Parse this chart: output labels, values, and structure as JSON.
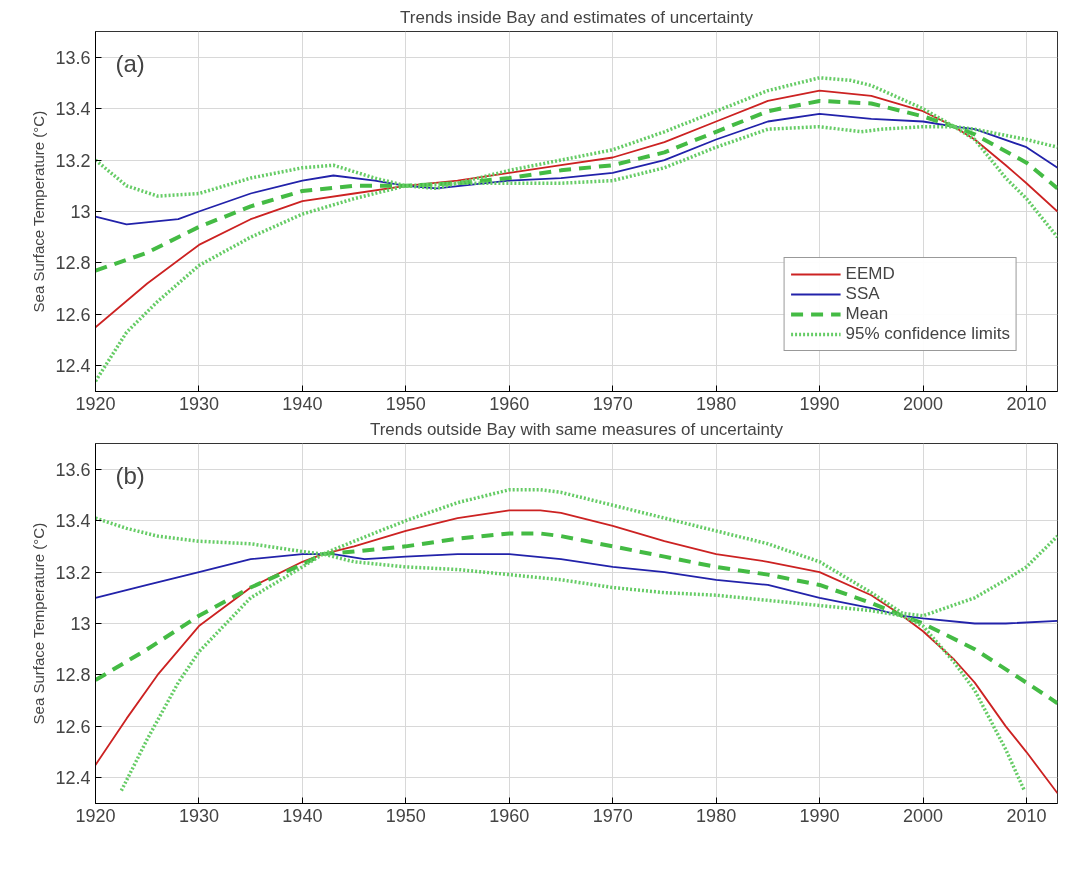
{
  "chart_data": [
    {
      "type": "line",
      "title": "Trends inside Bay and estimates of uncertainty",
      "ylabel": "Sea Surface Temperature (°C)",
      "annotations": [
        "(a)"
      ],
      "xlim": [
        1920,
        2013
      ],
      "ylim": [
        12.3,
        13.7
      ],
      "xticks": [
        1920,
        1930,
        1940,
        1950,
        1960,
        1970,
        1980,
        1990,
        2000,
        2010
      ],
      "yticks": [
        12.4,
        12.6,
        12.8,
        13,
        13.2,
        13.4,
        13.6
      ],
      "grid": true,
      "legend": "bottom right",
      "series": [
        {
          "name": "EEMD",
          "color": "#cc2222",
          "line_style": "solid",
          "x": [
            1920,
            1925,
            1930,
            1935,
            1940,
            1945,
            1950,
            1955,
            1960,
            1965,
            1970,
            1975,
            1980,
            1985,
            1990,
            1995,
            2000,
            2003,
            2005,
            2008,
            2010,
            2013
          ],
          "values": [
            12.55,
            12.72,
            12.87,
            12.97,
            13.04,
            13.07,
            13.1,
            13.12,
            13.15,
            13.18,
            13.21,
            13.27,
            13.35,
            13.43,
            13.47,
            13.45,
            13.39,
            13.33,
            13.28,
            13.18,
            13.11,
            13.0
          ]
        },
        {
          "name": "SSA",
          "color": "#2222aa",
          "line_style": "solid",
          "x": [
            1920,
            1923,
            1928,
            1930,
            1935,
            1940,
            1943,
            1947,
            1950,
            1953,
            1960,
            1965,
            1970,
            1975,
            1980,
            1985,
            1990,
            1995,
            2000,
            2003,
            2005,
            2010,
            2013
          ],
          "values": [
            12.98,
            12.95,
            12.97,
            13.0,
            13.07,
            13.12,
            13.14,
            13.12,
            13.1,
            13.09,
            13.12,
            13.13,
            13.15,
            13.2,
            13.28,
            13.35,
            13.38,
            13.36,
            13.35,
            13.33,
            13.32,
            13.25,
            13.17
          ]
        },
        {
          "name": "Mean",
          "color": "#44bb44",
          "line_style": "dashed",
          "x": [
            1920,
            1925,
            1930,
            1935,
            1940,
            1945,
            1950,
            1955,
            1960,
            1965,
            1970,
            1975,
            1980,
            1985,
            1990,
            1995,
            2000,
            2003,
            2005,
            2010,
            2013
          ],
          "values": [
            12.77,
            12.84,
            12.94,
            13.02,
            13.08,
            13.1,
            13.1,
            13.11,
            13.13,
            13.16,
            13.18,
            13.23,
            13.31,
            13.39,
            13.43,
            13.42,
            13.37,
            13.33,
            13.3,
            13.19,
            13.09
          ]
        },
        {
          "name": "95% confidence limits",
          "color": "#66cc66",
          "line_style": "dotted",
          "x": [
            1920,
            1923,
            1926,
            1930,
            1935,
            1940,
            1943,
            1947,
            1950,
            1953,
            1960,
            1965,
            1970,
            1975,
            1980,
            1985,
            1990,
            1993,
            1995,
            2000,
            2003,
            2005,
            2010,
            2013
          ],
          "values": [
            13.2,
            13.1,
            13.06,
            13.07,
            13.13,
            13.17,
            13.18,
            13.13,
            13.1,
            13.09,
            13.16,
            13.2,
            13.24,
            13.31,
            13.39,
            13.47,
            13.52,
            13.51,
            13.49,
            13.4,
            13.33,
            13.32,
            13.28,
            13.25
          ]
        },
        {
          "color": "#66cc66",
          "line_style": "dotted",
          "x": [
            1920,
            1923,
            1926,
            1930,
            1935,
            1940,
            1945,
            1950,
            1955,
            1960,
            1965,
            1970,
            1975,
            1980,
            1985,
            1990,
            1994,
            1996,
            2000,
            2003,
            2005,
            2008,
            2010,
            2013
          ],
          "values": [
            12.34,
            12.53,
            12.65,
            12.79,
            12.9,
            12.99,
            13.05,
            13.1,
            13.11,
            13.11,
            13.11,
            13.12,
            13.17,
            13.25,
            13.32,
            13.33,
            13.31,
            13.32,
            13.33,
            13.33,
            13.28,
            13.13,
            13.05,
            12.9
          ]
        }
      ]
    },
    {
      "type": "line",
      "title": "Trends outside Bay with same measures of uncertainty",
      "ylabel": "Sea Surface Temperature (°C)",
      "annotations": [
        "(b)"
      ],
      "xlim": [
        1920,
        2013
      ],
      "ylim": [
        12.3,
        13.7
      ],
      "xticks": [
        1920,
        1930,
        1940,
        1950,
        1960,
        1970,
        1980,
        1990,
        2000,
        2010
      ],
      "yticks": [
        12.4,
        12.6,
        12.8,
        13,
        13.2,
        13.4,
        13.6
      ],
      "grid": true,
      "series": [
        {
          "color": "#cc2222",
          "line_style": "solid",
          "x": [
            1920,
            1923,
            1926,
            1930,
            1935,
            1940,
            1942,
            1945,
            1950,
            1955,
            1960,
            1963,
            1965,
            1970,
            1975,
            1980,
            1985,
            1990,
            1995,
            1998,
            2000,
            2003,
            2005,
            2008,
            2010,
            2013
          ],
          "values": [
            12.45,
            12.63,
            12.8,
            12.99,
            13.14,
            13.24,
            13.27,
            13.3,
            13.36,
            13.41,
            13.44,
            13.44,
            13.43,
            13.38,
            13.32,
            13.27,
            13.24,
            13.2,
            13.11,
            13.03,
            12.97,
            12.86,
            12.77,
            12.6,
            12.5,
            12.34
          ]
        },
        {
          "color": "#2222aa",
          "line_style": "solid",
          "x": [
            1920,
            1925,
            1930,
            1935,
            1940,
            1943,
            1946,
            1950,
            1955,
            1960,
            1965,
            1970,
            1975,
            1980,
            1985,
            1990,
            1995,
            1998,
            2000,
            2005,
            2008,
            2013
          ],
          "values": [
            13.1,
            13.15,
            13.2,
            13.25,
            13.27,
            13.27,
            13.25,
            13.26,
            13.27,
            13.27,
            13.25,
            13.22,
            13.2,
            13.17,
            13.15,
            13.1,
            13.06,
            13.03,
            13.02,
            13.0,
            13.0,
            13.01
          ]
        },
        {
          "color": "#44bb44",
          "line_style": "dashed",
          "x": [
            1920,
            1925,
            1930,
            1935,
            1940,
            1942,
            1945,
            1950,
            1955,
            1960,
            1963,
            1965,
            1970,
            1975,
            1980,
            1985,
            1990,
            1995,
            1998,
            2000,
            2005,
            2010,
            2013
          ],
          "values": [
            12.78,
            12.9,
            13.03,
            13.14,
            13.23,
            13.27,
            13.28,
            13.3,
            13.33,
            13.35,
            13.35,
            13.34,
            13.3,
            13.26,
            13.22,
            13.19,
            13.15,
            13.08,
            13.03,
            13.0,
            12.9,
            12.77,
            12.69
          ]
        },
        {
          "color": "#66cc66",
          "line_style": "dotted",
          "x": [
            1920,
            1923,
            1926,
            1930,
            1935,
            1940,
            1942,
            1945,
            1950,
            1955,
            1960,
            1963,
            1965,
            1970,
            1975,
            1980,
            1985,
            1990,
            1995,
            1998,
            2000,
            2005,
            2008,
            2010,
            2013
          ],
          "values": [
            13.41,
            13.37,
            13.34,
            13.32,
            13.31,
            13.28,
            13.27,
            13.32,
            13.4,
            13.47,
            13.52,
            13.52,
            13.51,
            13.46,
            13.41,
            13.36,
            13.31,
            13.24,
            13.12,
            13.04,
            13.03,
            13.1,
            13.17,
            13.22,
            13.34
          ]
        },
        {
          "color": "#66cc66",
          "line_style": "dotted",
          "x": [
            1922.5,
            1925,
            1928,
            1930,
            1935,
            1940,
            1942,
            1945,
            1950,
            1955,
            1960,
            1965,
            1970,
            1975,
            1980,
            1985,
            1990,
            1995,
            1998,
            2000,
            2003,
            2005,
            2008,
            2009.8
          ],
          "values": [
            12.35,
            12.55,
            12.77,
            12.89,
            13.1,
            13.22,
            13.27,
            13.24,
            13.22,
            13.21,
            13.19,
            13.17,
            13.14,
            13.12,
            13.11,
            13.09,
            13.07,
            13.05,
            13.03,
            12.99,
            12.85,
            12.74,
            12.51,
            12.35
          ]
        }
      ]
    }
  ]
}
